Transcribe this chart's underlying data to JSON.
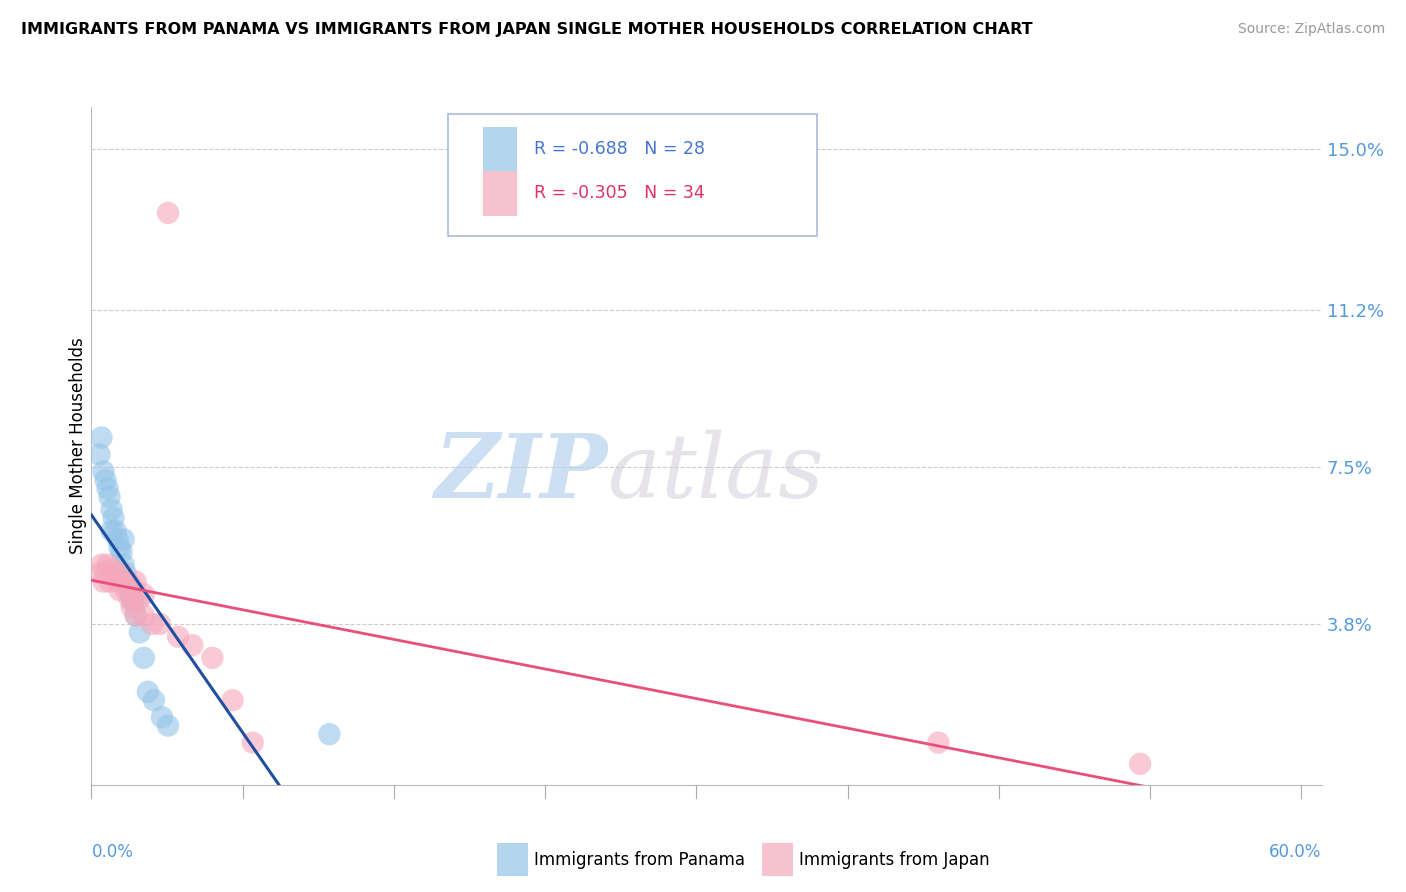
{
  "title": "IMMIGRANTS FROM PANAMA VS IMMIGRANTS FROM JAPAN SINGLE MOTHER HOUSEHOLDS CORRELATION CHART",
  "source": "Source: ZipAtlas.com",
  "ylabel": "Single Mother Households",
  "yticks": [
    0.0,
    0.038,
    0.075,
    0.112,
    0.15
  ],
  "ytick_labels": [
    "",
    "3.8%",
    "7.5%",
    "11.2%",
    "15.0%"
  ],
  "xlim": [
    0.0,
    0.61
  ],
  "ylim": [
    0.0,
    0.16
  ],
  "legend_label1": "Immigrants from Panama",
  "legend_label2": "Immigrants from Japan",
  "color_panama": "#94c4e8",
  "color_japan": "#f5a8bc",
  "line_color_panama": "#1f4fa0",
  "line_color_japan": "#e8507a",
  "panama_x": [
    0.004,
    0.005,
    0.006,
    0.007,
    0.008,
    0.009,
    0.01,
    0.01,
    0.011,
    0.012,
    0.013,
    0.014,
    0.015,
    0.016,
    0.016,
    0.017,
    0.018,
    0.019,
    0.02,
    0.021,
    0.022,
    0.024,
    0.026,
    0.028,
    0.031,
    0.035,
    0.038,
    0.118
  ],
  "panama_y": [
    0.078,
    0.082,
    0.074,
    0.072,
    0.07,
    0.068,
    0.065,
    0.06,
    0.063,
    0.06,
    0.058,
    0.056,
    0.055,
    0.058,
    0.052,
    0.05,
    0.048,
    0.046,
    0.044,
    0.043,
    0.04,
    0.036,
    0.03,
    0.022,
    0.02,
    0.016,
    0.014,
    0.012
  ],
  "japan_x": [
    0.004,
    0.005,
    0.006,
    0.007,
    0.008,
    0.009,
    0.01,
    0.011,
    0.012,
    0.013,
    0.014,
    0.015,
    0.016,
    0.017,
    0.018,
    0.019,
    0.02,
    0.021,
    0.022,
    0.024,
    0.026,
    0.02,
    0.022,
    0.026,
    0.03,
    0.034,
    0.038,
    0.043,
    0.05,
    0.06,
    0.07,
    0.08,
    0.42,
    0.52
  ],
  "japan_y": [
    0.05,
    0.052,
    0.048,
    0.05,
    0.052,
    0.048,
    0.051,
    0.049,
    0.05,
    0.048,
    0.046,
    0.05,
    0.048,
    0.046,
    0.048,
    0.044,
    0.047,
    0.044,
    0.048,
    0.044,
    0.045,
    0.042,
    0.04,
    0.04,
    0.038,
    0.038,
    0.135,
    0.035,
    0.033,
    0.03,
    0.02,
    0.01,
    0.01,
    0.005
  ],
  "xtick_positions": [
    0.0,
    0.075,
    0.15,
    0.225,
    0.3,
    0.375,
    0.45,
    0.525,
    0.6
  ]
}
